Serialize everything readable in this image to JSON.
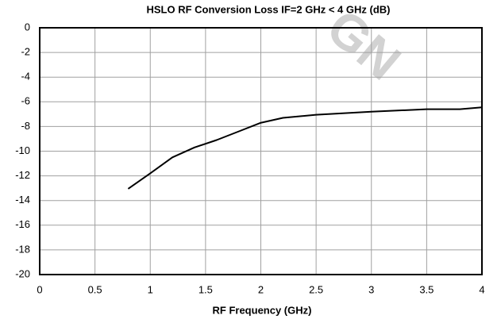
{
  "chart_data": {
    "type": "line",
    "title": "HSLO RF Conversion Loss IF=2 GHz < 4 GHz (dB)",
    "x_label": "RF Frequency (GHz)",
    "watermark": "GN",
    "x": [
      0.8,
      1.0,
      1.2,
      1.4,
      1.6,
      1.8,
      2.0,
      2.2,
      2.5,
      3.0,
      3.5,
      3.8,
      4.0
    ],
    "series": [
      {
        "color": "#000000",
        "values": [
          -13.05,
          -11.8,
          -10.5,
          -9.7,
          -9.1,
          -8.4,
          -7.7,
          -7.3,
          -7.05,
          -6.8,
          -6.6,
          -6.6,
          -6.45
        ]
      }
    ],
    "xlim": [
      0,
      4
    ],
    "xticks": [
      0,
      0.5,
      1,
      1.5,
      2,
      2.5,
      3,
      3.5,
      4
    ],
    "ylim": [
      -20,
      0
    ],
    "yticks": [
      0,
      -2,
      -4,
      -6,
      -8,
      -10,
      -12,
      -14,
      -16,
      -18,
      -20
    ],
    "grid": true
  }
}
